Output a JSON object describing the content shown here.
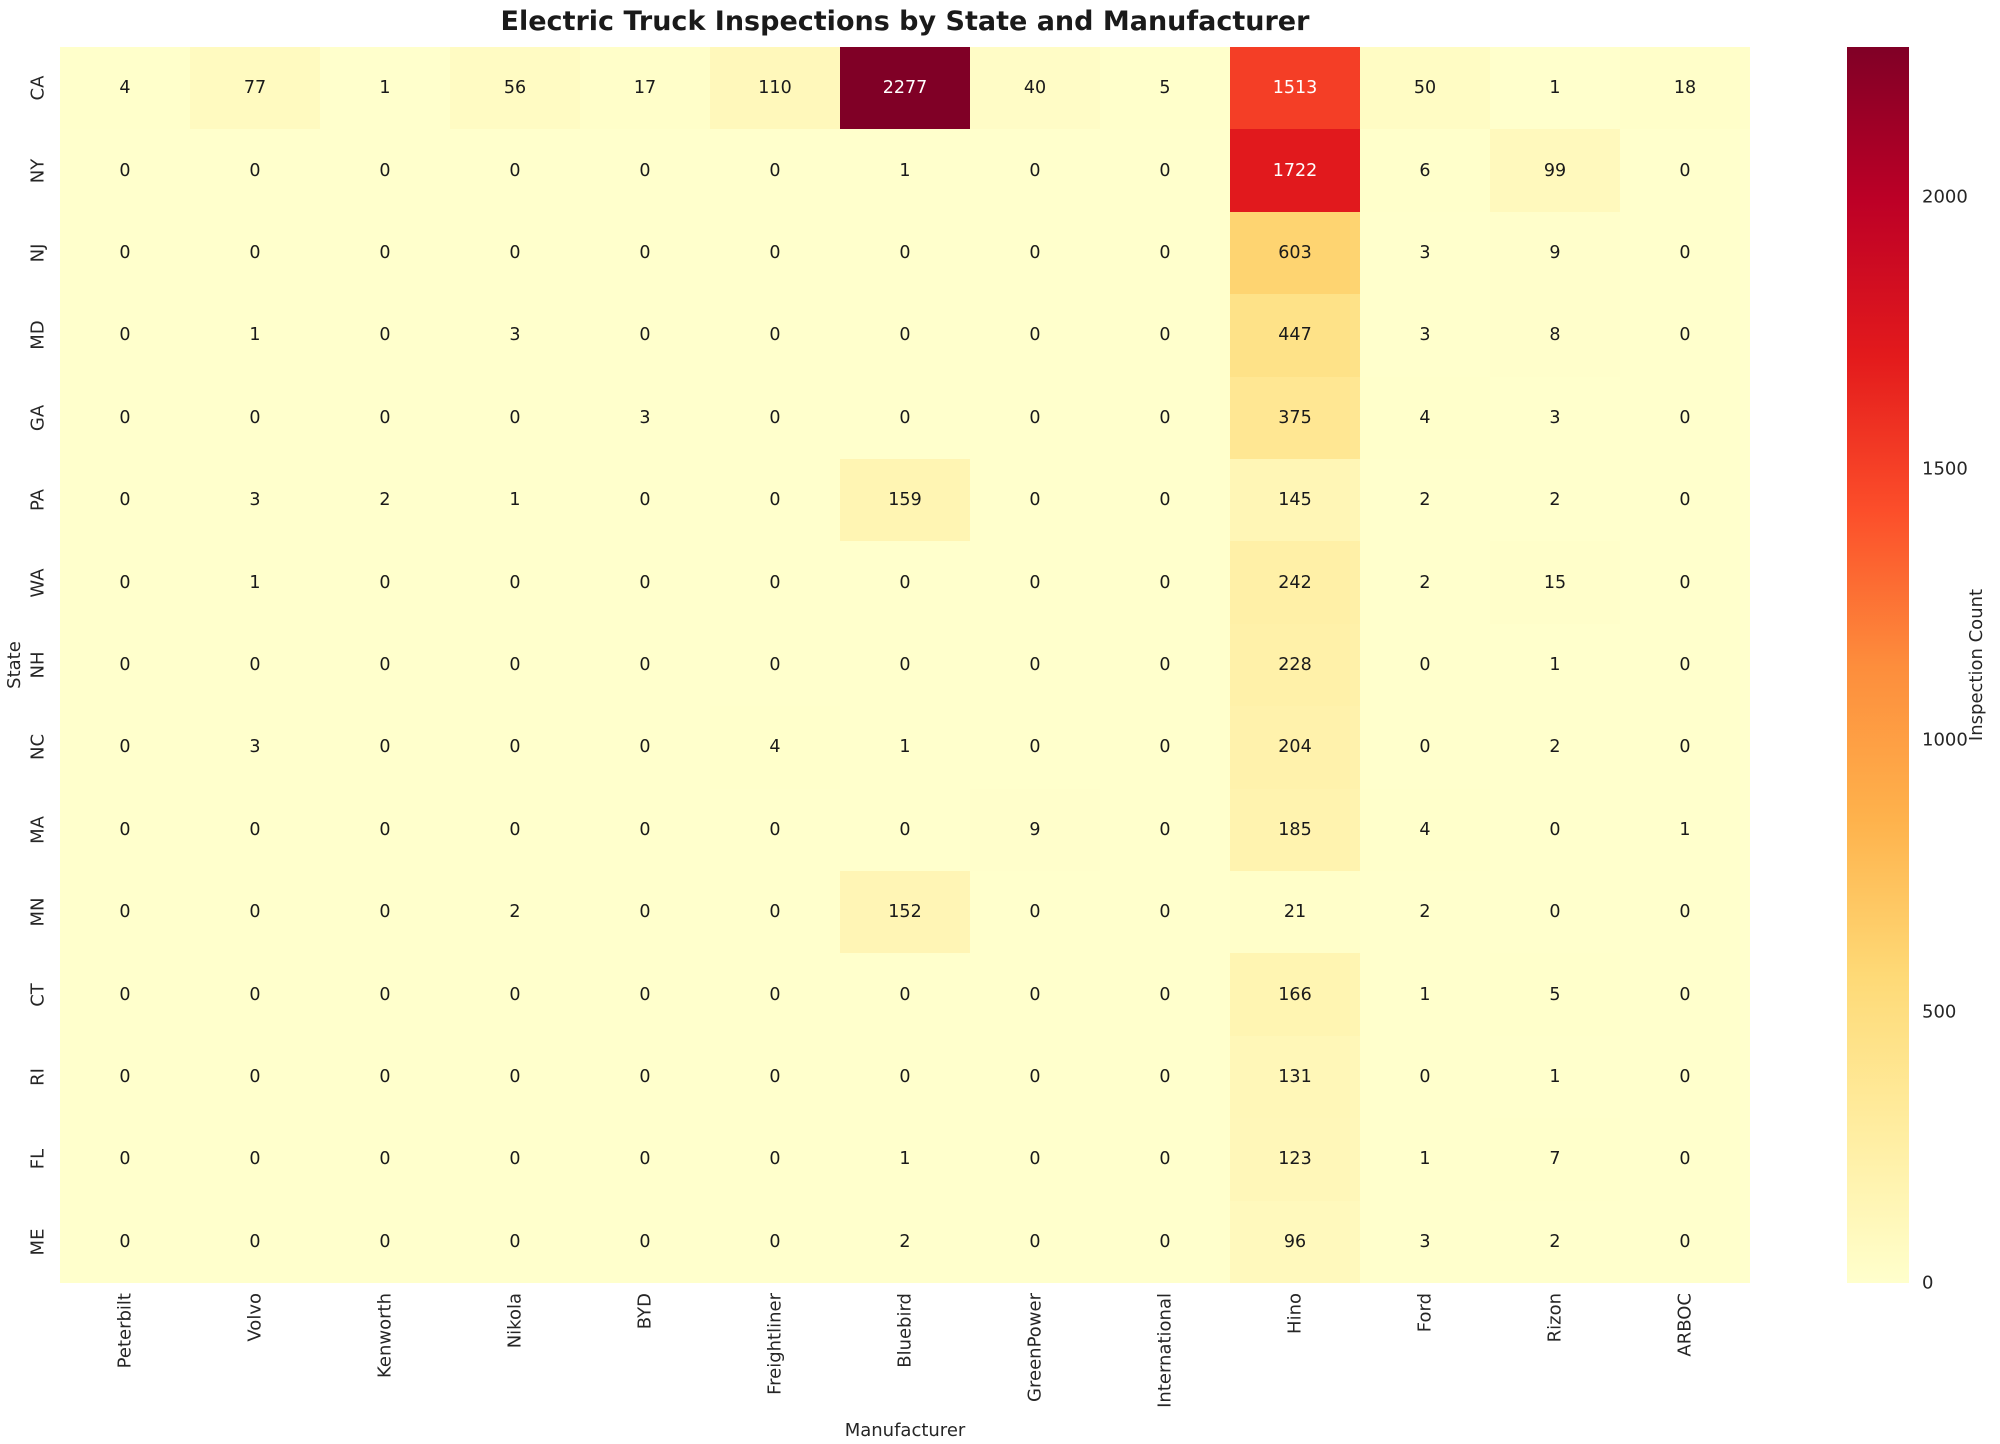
{
  "chart_data": {
    "type": "heatmap",
    "title": "Electric Truck Inspections by State and Manufacturer",
    "xlabel": "Manufacturer",
    "ylabel": "State",
    "colorbar_label": "Inspection Count",
    "colorbar_ticks": [
      0,
      500,
      1000,
      1500,
      2000
    ],
    "colormap": "YlOrRd",
    "vmin": 0,
    "vmax": 2277,
    "legend_position": "right",
    "grid": false,
    "columns": [
      "Peterbilt",
      "Volvo",
      "Kenworth",
      "Nikola",
      "BYD",
      "Freightliner",
      "Bluebird",
      "GreenPower",
      "International",
      "Hino",
      "Ford",
      "Rizon",
      "ARBOC"
    ],
    "rows": [
      "CA",
      "NY",
      "NJ",
      "MD",
      "GA",
      "PA",
      "WA",
      "NH",
      "NC",
      "MA",
      "MN",
      "CT",
      "RI",
      "FL",
      "ME"
    ],
    "values": [
      [
        4,
        77,
        1,
        56,
        17,
        110,
        2277,
        40,
        5,
        1513,
        50,
        1,
        18
      ],
      [
        0,
        0,
        0,
        0,
        0,
        0,
        1,
        0,
        0,
        1722,
        6,
        99,
        0
      ],
      [
        0,
        0,
        0,
        0,
        0,
        0,
        0,
        0,
        0,
        603,
        3,
        9,
        0
      ],
      [
        0,
        1,
        0,
        3,
        0,
        0,
        0,
        0,
        0,
        447,
        3,
        8,
        0
      ],
      [
        0,
        0,
        0,
        0,
        3,
        0,
        0,
        0,
        0,
        375,
        4,
        3,
        0
      ],
      [
        0,
        3,
        2,
        1,
        0,
        0,
        159,
        0,
        0,
        145,
        2,
        2,
        0
      ],
      [
        0,
        1,
        0,
        0,
        0,
        0,
        0,
        0,
        0,
        242,
        2,
        15,
        0
      ],
      [
        0,
        0,
        0,
        0,
        0,
        0,
        0,
        0,
        0,
        228,
        0,
        1,
        0
      ],
      [
        0,
        3,
        0,
        0,
        0,
        4,
        1,
        0,
        0,
        204,
        0,
        2,
        0
      ],
      [
        0,
        0,
        0,
        0,
        0,
        0,
        0,
        9,
        0,
        185,
        4,
        0,
        1
      ],
      [
        0,
        0,
        0,
        2,
        0,
        0,
        152,
        0,
        0,
        21,
        2,
        0,
        0
      ],
      [
        0,
        0,
        0,
        0,
        0,
        0,
        0,
        0,
        0,
        166,
        1,
        5,
        0
      ],
      [
        0,
        0,
        0,
        0,
        0,
        0,
        0,
        0,
        0,
        131,
        0,
        1,
        0
      ],
      [
        0,
        0,
        0,
        0,
        0,
        0,
        1,
        0,
        0,
        123,
        1,
        7,
        0
      ],
      [
        0,
        0,
        0,
        0,
        0,
        0,
        2,
        0,
        0,
        96,
        3,
        2,
        0
      ]
    ],
    "colors": {
      "cmap_low": "#ffffcc",
      "cmap_high": "#800026",
      "annotation_dark": "#1a1a1a",
      "annotation_light": "#ffffff"
    }
  }
}
